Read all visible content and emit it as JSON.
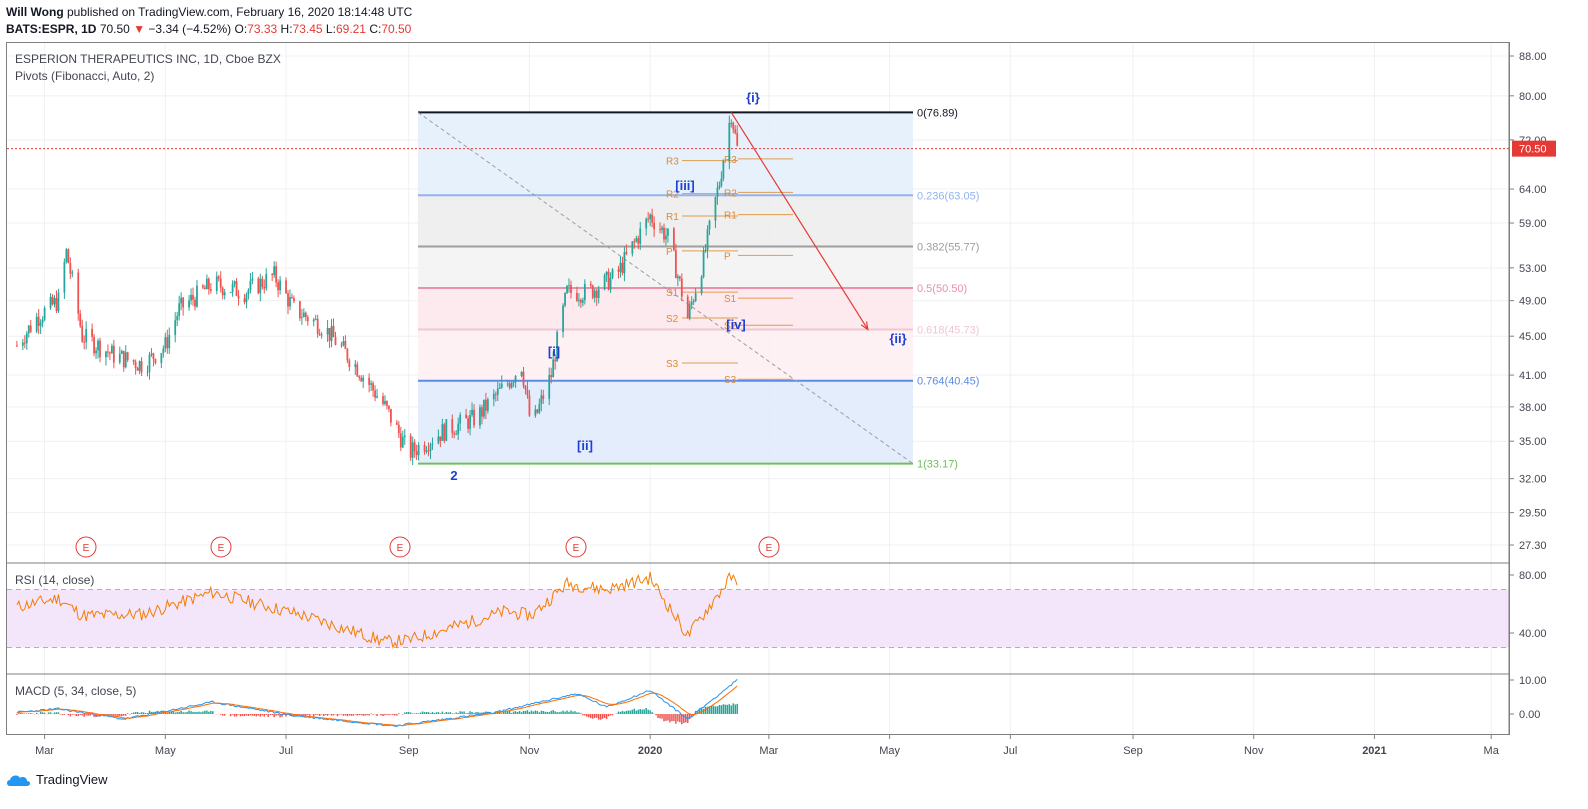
{
  "header": {
    "author": "Will Wong",
    "published_text": "published on TradingView.com, February 16, 2020 18:14:48 UTC",
    "symbol": "BATS:ESPR, 1D",
    "last": "70.50",
    "change_arrow": "▼",
    "change": "−3.34 (−4.52%)",
    "ohlc": {
      "o_label": "O:",
      "o": "73.33",
      "h_label": "H:",
      "h": "73.45",
      "l_label": "L:",
      "l": "69.21",
      "c_label": "C:",
      "c": "70.50"
    }
  },
  "main_pane": {
    "title": "ESPERION THERAPEUTICS INC, 1D, Cboe BZX",
    "indicator": "Pivots (Fibonacci, Auto, 2)"
  },
  "rsi_pane": {
    "title": "RSI (14, close)",
    "ticks": [
      "80.00",
      "40.00"
    ]
  },
  "macd_pane": {
    "title": "MACD (5, 34, close, 5)",
    "ticks": [
      "10.00",
      "0.00"
    ]
  },
  "footer": {
    "brand": "TradingView"
  },
  "colors": {
    "up": "#26a69a",
    "down": "#ef5350",
    "rsi": "#f57c00",
    "macd": "#2196f3",
    "signal": "#ff6d00",
    "accent": "#1e3fd4",
    "price_line": "#e53935"
  },
  "chart_data": {
    "type": "candlestick",
    "price_axis_ticks": [
      "88.00",
      "80.00",
      "72.00",
      "64.00",
      "59.00",
      "53.00",
      "49.00",
      "45.00",
      "41.00",
      "38.00",
      "35.00",
      "32.00",
      "29.50",
      "27.30"
    ],
    "log_scale": true,
    "current_price_label": "70.50",
    "x_ticks": [
      "Mar",
      "May",
      "Jul",
      "Sep",
      "Nov",
      "2020",
      "Mar",
      "May",
      "Jul",
      "Sep",
      "Nov",
      "2021",
      "Ma"
    ],
    "fib_retracement": [
      {
        "label": "0(76.89)",
        "value": 76.89,
        "color": "#131722"
      },
      {
        "label": "0.236(63.05)",
        "value": 63.05,
        "color": "#90b4f2"
      },
      {
        "label": "0.382(55.77)",
        "value": 55.77,
        "color": "#9e9e9e"
      },
      {
        "label": "0.5(50.50)",
        "value": 50.5,
        "color": "#e991a8"
      },
      {
        "label": "0.618(45.73)",
        "value": 45.73,
        "color": "#f0c6d2"
      },
      {
        "label": "0.764(40.45)",
        "value": 40.45,
        "color": "#5b8be6"
      },
      {
        "label": "1(33.17)",
        "value": 33.17,
        "color": "#6fbf5a"
      }
    ],
    "pivot_labels_left": [
      "R3",
      "R2",
      "R1",
      "P",
      "S1",
      "S2",
      "S3"
    ],
    "pivot_labels_right": [
      "R3",
      "R2",
      "R1",
      "P",
      "S1",
      "S2",
      "S3"
    ],
    "wave_labels": [
      "{i}",
      "[iii]",
      "[iv]",
      "{ii}",
      "[i]",
      "[ii]",
      "2"
    ],
    "earnings_markers": [
      "E",
      "E",
      "E",
      "E",
      "E"
    ],
    "price_anchors": [
      {
        "date": "2019-02-15",
        "close": 44
      },
      {
        "date": "2019-02-25",
        "close": 47
      },
      {
        "date": "2019-03-08",
        "close": 49
      },
      {
        "date": "2019-03-12",
        "close": 55
      },
      {
        "date": "2019-03-20",
        "close": 45
      },
      {
        "date": "2019-04-05",
        "close": 43
      },
      {
        "date": "2019-04-20",
        "close": 42
      },
      {
        "date": "2019-05-01",
        "close": 44
      },
      {
        "date": "2019-05-08",
        "close": 48
      },
      {
        "date": "2019-05-25",
        "close": 51
      },
      {
        "date": "2019-06-10",
        "close": 50
      },
      {
        "date": "2019-06-25",
        "close": 52
      },
      {
        "date": "2019-07-05",
        "close": 48
      },
      {
        "date": "2019-07-20",
        "close": 46
      },
      {
        "date": "2019-08-05",
        "close": 42
      },
      {
        "date": "2019-08-20",
        "close": 38
      },
      {
        "date": "2019-09-01",
        "close": 34
      },
      {
        "date": "2019-09-20",
        "close": 36
      },
      {
        "date": "2019-10-05",
        "close": 37
      },
      {
        "date": "2019-10-20",
        "close": 40
      },
      {
        "date": "2019-10-28",
        "close": 42
      },
      {
        "date": "2019-11-02",
        "close": 36
      },
      {
        "date": "2019-11-12",
        "close": 41
      },
      {
        "date": "2019-11-20",
        "close": 50
      },
      {
        "date": "2019-12-01",
        "close": 50
      },
      {
        "date": "2019-12-15",
        "close": 52
      },
      {
        "date": "2020-01-01",
        "close": 60
      },
      {
        "date": "2020-01-10",
        "close": 57
      },
      {
        "date": "2020-01-20",
        "close": 47
      },
      {
        "date": "2020-01-28",
        "close": 54
      },
      {
        "date": "2020-02-05",
        "close": 65
      },
      {
        "date": "2020-02-11",
        "close": 76.89
      },
      {
        "date": "2020-02-14",
        "close": 70.5
      }
    ],
    "projection": {
      "from": {
        "date": "2020-02-11",
        "value": 76.89
      },
      "to": {
        "date": "2020-04-20",
        "value": 45.73
      }
    },
    "rsi_anchors": [
      {
        "date": "2019-02-15",
        "value": 58
      },
      {
        "date": "2019-03-08",
        "value": 64
      },
      {
        "date": "2019-03-20",
        "value": 52
      },
      {
        "date": "2019-04-20",
        "value": 53
      },
      {
        "date": "2019-05-25",
        "value": 68
      },
      {
        "date": "2019-07-10",
        "value": 52
      },
      {
        "date": "2019-08-20",
        "value": 34
      },
      {
        "date": "2019-09-01",
        "value": 35
      },
      {
        "date": "2019-10-20",
        "value": 55
      },
      {
        "date": "2019-11-02",
        "value": 52
      },
      {
        "date": "2019-11-20",
        "value": 74
      },
      {
        "date": "2019-12-10",
        "value": 70
      },
      {
        "date": "2020-01-01",
        "value": 78
      },
      {
        "date": "2020-01-20",
        "value": 38
      },
      {
        "date": "2020-02-11",
        "value": 79
      },
      {
        "date": "2020-02-14",
        "value": 72
      }
    ],
    "macd_anchors": [
      {
        "date": "2019-02-15",
        "value": 0.5
      },
      {
        "date": "2019-03-08",
        "value": 1.5
      },
      {
        "date": "2019-04-10",
        "value": -1.5
      },
      {
        "date": "2019-05-25",
        "value": 3.5
      },
      {
        "date": "2019-07-05",
        "value": -0.5
      },
      {
        "date": "2019-08-25",
        "value": -3.5
      },
      {
        "date": "2019-10-15",
        "value": 0.5
      },
      {
        "date": "2019-11-25",
        "value": 6
      },
      {
        "date": "2019-12-10",
        "value": 2
      },
      {
        "date": "2020-01-01",
        "value": 7
      },
      {
        "date": "2020-01-20",
        "value": -1.5
      },
      {
        "date": "2020-02-14",
        "value": 10
      }
    ]
  }
}
